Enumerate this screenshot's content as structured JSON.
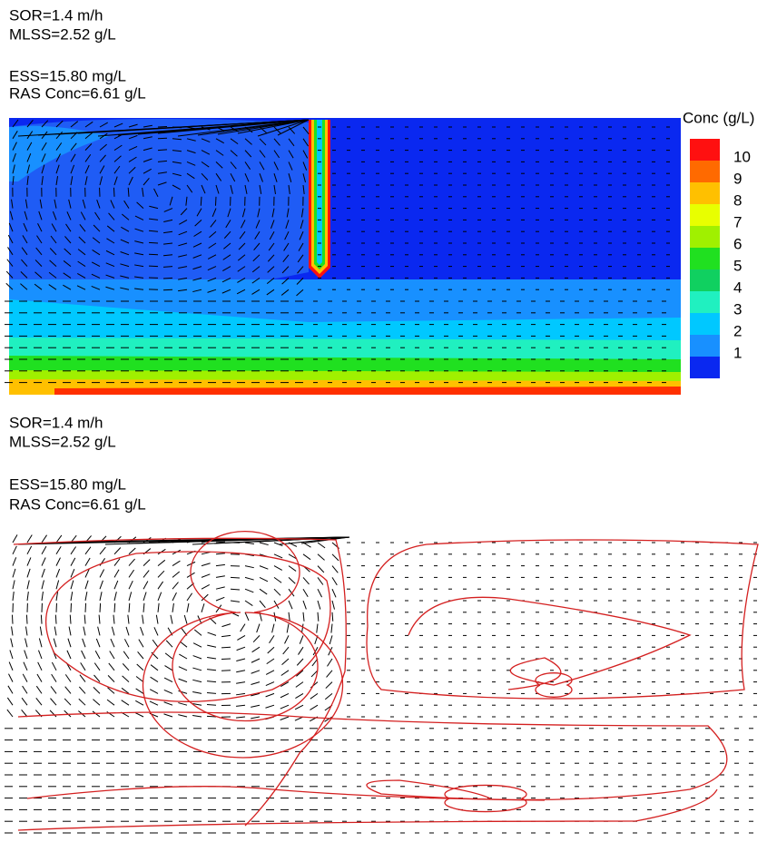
{
  "panels": [
    {
      "annotations": [
        "SOR=1.4 m/h",
        "MLSS=2.52 g/L",
        "ESS=15.80 mg/L",
        "RAS Conc=6.61 g/L"
      ]
    },
    {
      "annotations": [
        "SOR=1.4 m/h",
        "MLSS=2.52 g/L",
        "ESS=15.80 mg/L",
        "RAS Conc=6.61 g/L"
      ]
    }
  ],
  "colorbar": {
    "title": "Conc (g/L)",
    "levels": [
      10,
      9,
      8,
      7,
      6,
      5,
      4,
      3,
      2,
      1
    ],
    "colors": [
      "#ff1010",
      "#ff6a00",
      "#ffc000",
      "#e8ff00",
      "#a0f000",
      "#20e020",
      "#10d060",
      "#20f0c0",
      "#00c8ff",
      "#1890ff",
      "#0a28f0"
    ]
  }
}
